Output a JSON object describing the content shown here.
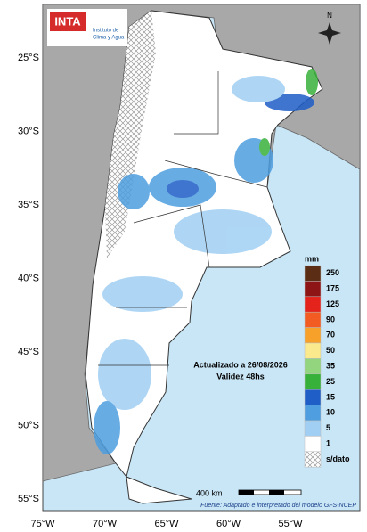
{
  "header": {
    "logo": "INTA",
    "institute": [
      "Instituto de",
      "Clima y Agua"
    ]
  },
  "compass": "N",
  "latitude_labels": [
    "25°S",
    "30°S",
    "35°S",
    "40°S",
    "45°S",
    "50°S",
    "55°S"
  ],
  "longitude_labels": [
    "75°W",
    "70°W",
    "65°W",
    "60°W",
    "55°W"
  ],
  "legend": {
    "unit": "mm",
    "items": [
      {
        "label": 250,
        "color": "#5a2d14"
      },
      {
        "label": 175,
        "color": "#8e1515"
      },
      {
        "label": 125,
        "color": "#e3231c"
      },
      {
        "label": 90,
        "color": "#f25c23"
      },
      {
        "label": 70,
        "color": "#f7a12b"
      },
      {
        "label": 50,
        "color": "#fbe98e"
      },
      {
        "label": 35,
        "color": "#93d47e"
      },
      {
        "label": 25,
        "color": "#38b13a"
      },
      {
        "label": 15,
        "color": "#1e5ec6"
      },
      {
        "label": 10,
        "color": "#4e9ee0"
      },
      {
        "label": 5,
        "color": "#a0cff3"
      },
      {
        "label": 1,
        "color": "#ffffff"
      }
    ],
    "nodata": "s/dato"
  },
  "annotation": [
    "Actualizado a 26/08/2026",
    "Validez 48hs"
  ],
  "scale_bar": "400 km",
  "source": "Fuente: Adaptado e interpretado del modelo GFS-NCEP"
}
